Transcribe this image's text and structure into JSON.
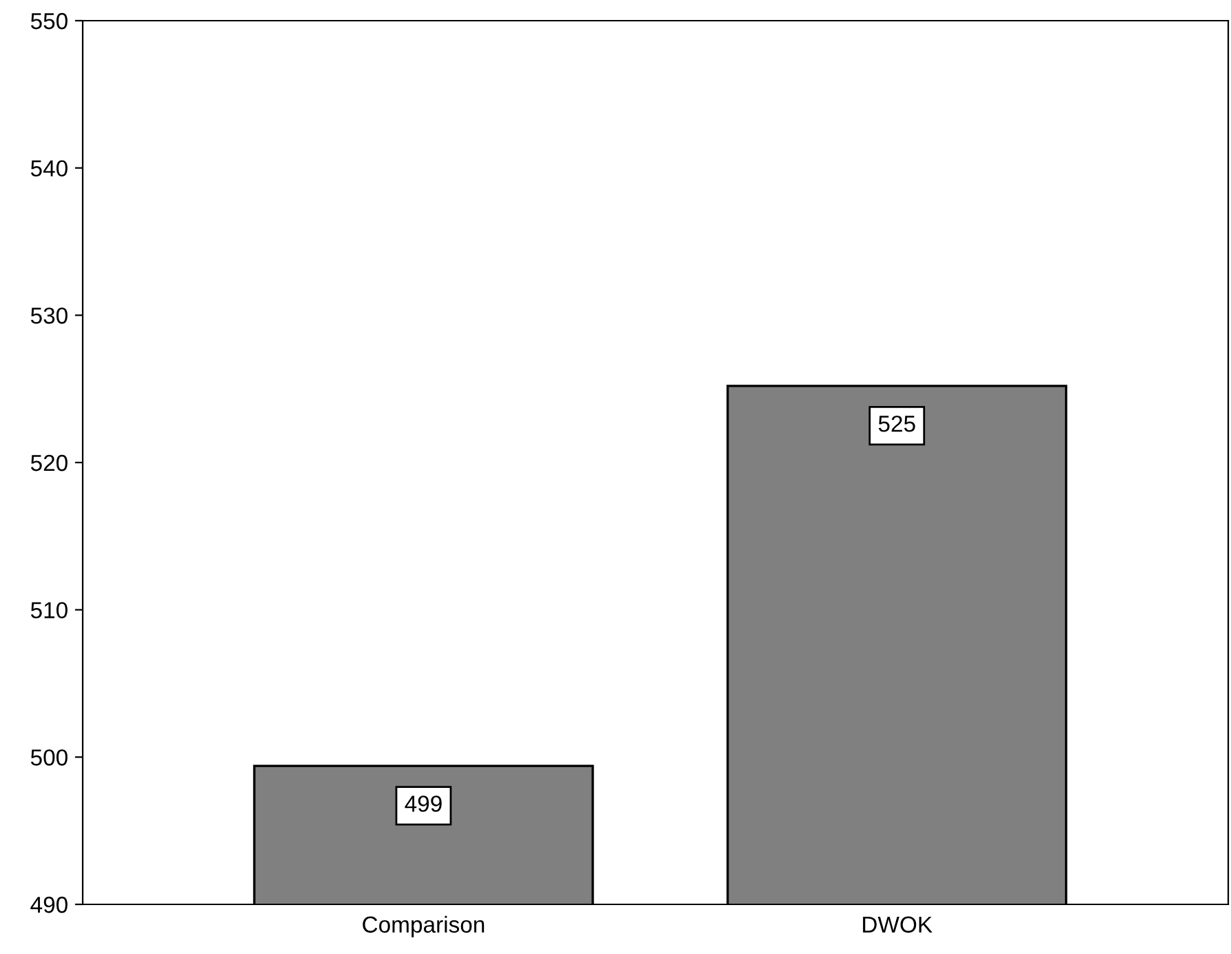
{
  "chart_data": {
    "type": "bar",
    "categories": [
      "Comparison",
      "DWOK"
    ],
    "values": [
      499.4,
      525.2
    ],
    "value_labels": [
      "499",
      "525"
    ],
    "color": "#808080",
    "ylim": [
      490,
      550
    ],
    "yticks": [
      490,
      500,
      510,
      520,
      530,
      540,
      550
    ],
    "grid": false,
    "legend": false
  }
}
